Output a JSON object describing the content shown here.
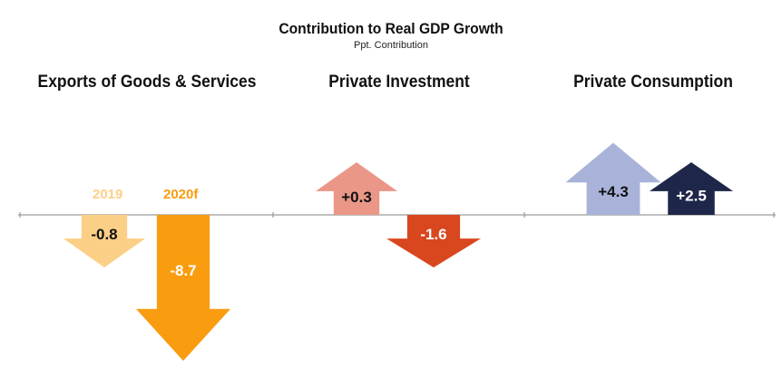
{
  "title": "Contribution to Real GDP Growth",
  "subtitle": "Ppt. Contribution",
  "groups": [
    {
      "label": "Exports of Goods & Services"
    },
    {
      "label": "Private Investment"
    },
    {
      "label": "Private Consumption"
    }
  ],
  "legend": {
    "y2019": "2019",
    "y2020": "2020f"
  },
  "colors": {
    "exports_2019": "#fccf86",
    "exports_2020": "#f99c0f",
    "investment_2019": "#ea9788",
    "investment_2020": "#d9471f",
    "consumption_2019": "#a9b3da",
    "consumption_2020": "#1e2749"
  },
  "chart_data": {
    "type": "bar",
    "title": "Contribution to Real GDP Growth",
    "subtitle": "Ppt. Contribution",
    "categories": [
      "Exports of Goods & Services",
      "Private Investment",
      "Private Consumption"
    ],
    "series": [
      {
        "name": "2019",
        "values": [
          -0.8,
          0.3,
          4.3
        ],
        "labels": [
          "-0.8",
          "+0.3",
          "+4.3"
        ]
      },
      {
        "name": "2020f",
        "values": [
          -8.7,
          -1.6,
          2.5
        ],
        "labels": [
          "-8.7",
          "-1.6",
          "+2.5"
        ]
      }
    ]
  }
}
